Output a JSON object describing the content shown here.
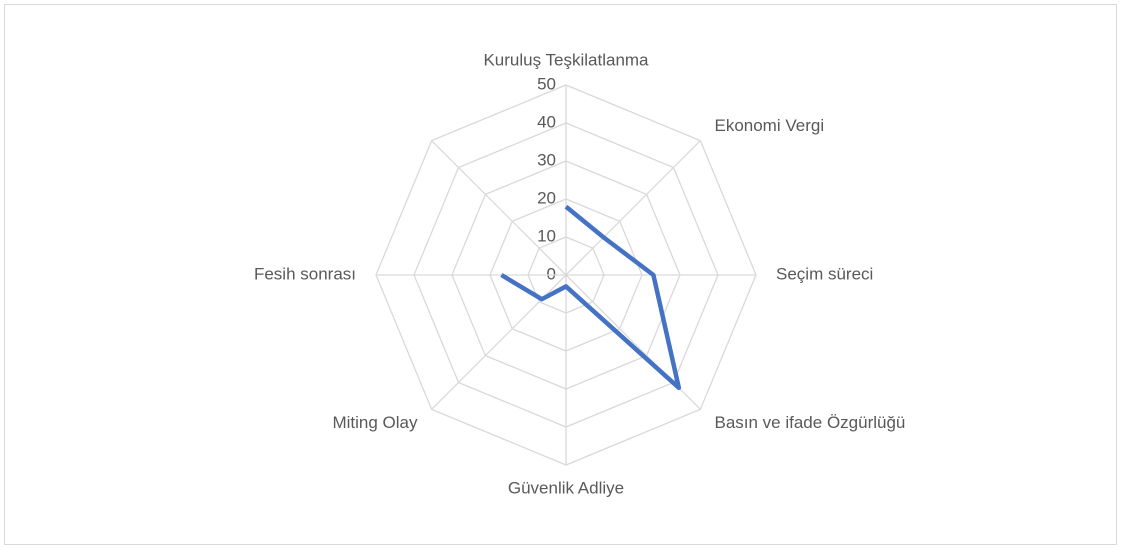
{
  "chart_data": {
    "type": "radar",
    "categories": [
      "Kuruluş Teşkilatlanma",
      "Ekonomi Vergi",
      "Seçim süreci",
      "Basın ve ifade Özgürlüğü",
      "Güvenlik Adliye",
      "Miting Olay",
      "Fesih sonrası"
    ],
    "values": [
      18,
      14,
      23,
      42,
      3,
      9,
      17
    ],
    "color": "#4472c4",
    "ylim": [
      0,
      50
    ],
    "yticks": [
      0,
      10,
      20,
      30,
      40,
      50
    ],
    "grid": true
  }
}
